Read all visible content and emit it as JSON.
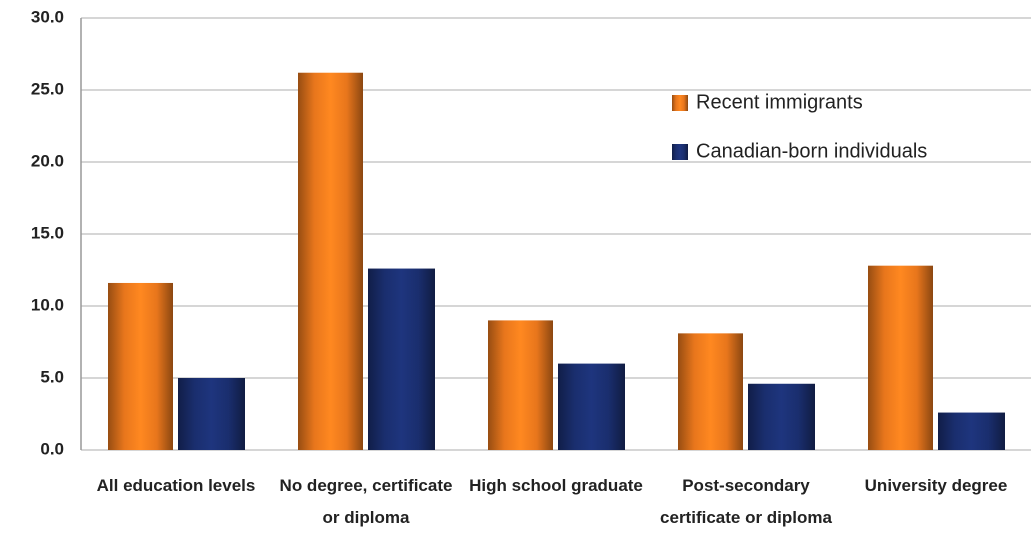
{
  "chart_data": {
    "type": "bar",
    "categories": [
      "All education levels",
      "No degree, certificate or diploma",
      "High school graduate",
      "Post-secondary certificate or diploma",
      "University degree"
    ],
    "series": [
      {
        "name": "Recent immigrants",
        "color": "#e8761c",
        "values": [
          11.6,
          26.2,
          9.0,
          8.1,
          12.8
        ]
      },
      {
        "name": "Canadian-born individuals",
        "color": "#1a2e6e",
        "values": [
          5.0,
          12.6,
          6.0,
          4.6,
          2.6
        ]
      }
    ],
    "ylim": [
      0,
      30
    ],
    "yticks": [
      {
        "value": 0,
        "label": "0.0"
      },
      {
        "value": 5,
        "label": "5.0"
      },
      {
        "value": 10,
        "label": "10.0"
      },
      {
        "value": 15,
        "label": "15.0"
      },
      {
        "value": 20,
        "label": "20.0"
      },
      {
        "value": 25,
        "label": "25.0"
      },
      {
        "value": 30,
        "label": "30.0"
      }
    ],
    "grid": true,
    "legend": "upper right"
  }
}
